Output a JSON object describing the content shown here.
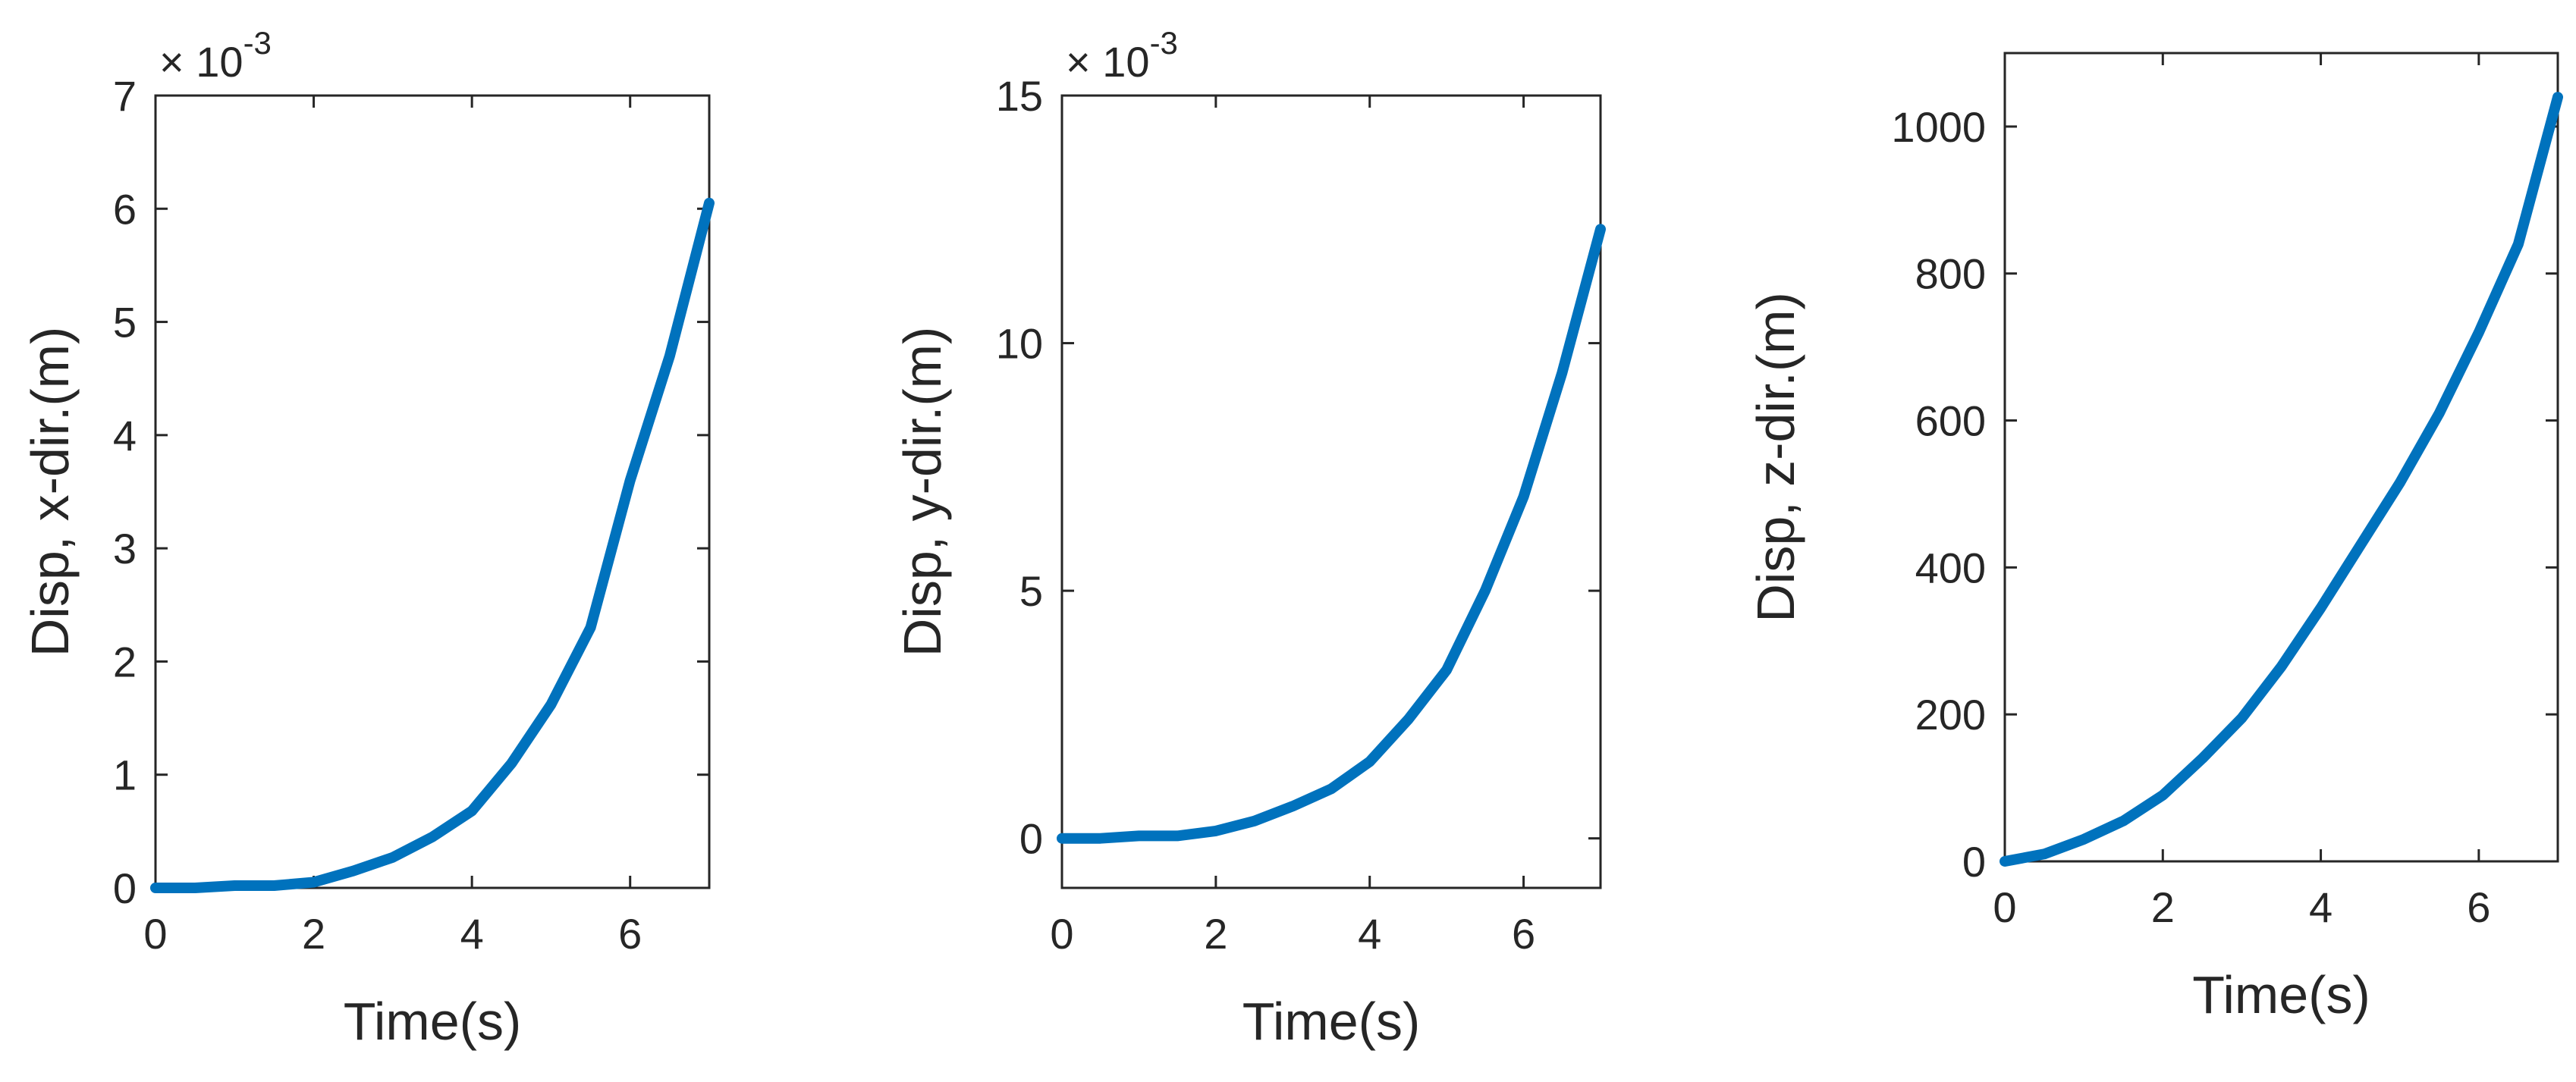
{
  "chart_data": [
    {
      "type": "line",
      "xlabel": "Time(s)",
      "ylabel": "Disp, x-dir.(m)",
      "exponent_label": "× 10",
      "exponent_power": "-3",
      "xlim": [
        0,
        7
      ],
      "ylim": [
        0,
        7
      ],
      "xticks": [
        0,
        2,
        4,
        6
      ],
      "yticks": [
        0,
        1,
        2,
        3,
        4,
        5,
        6,
        7
      ],
      "xtick_labels": [
        "0",
        "2",
        "4",
        "6"
      ],
      "ytick_labels": [
        "0",
        "1",
        "2",
        "3",
        "4",
        "5",
        "6",
        "7"
      ],
      "line_color": "#0072BD",
      "series": [
        {
          "x": [
            0,
            0.5,
            1.0,
            1.5,
            2.0,
            2.5,
            3.0,
            3.5,
            4.0,
            4.5,
            5.0,
            5.5,
            6.0,
            6.5,
            7.0
          ],
          "y": [
            0,
            0,
            0.02,
            0.02,
            0.05,
            0.15,
            0.27,
            0.45,
            0.68,
            1.1,
            1.62,
            2.3,
            3.6,
            4.7,
            6.05
          ]
        }
      ]
    },
    {
      "type": "line",
      "xlabel": "Time(s)",
      "ylabel": "Disp, y-dir.(m)",
      "exponent_label": "× 10",
      "exponent_power": "-3",
      "xlim": [
        0,
        7
      ],
      "ylim": [
        -1,
        15
      ],
      "xticks": [
        0,
        2,
        4,
        6
      ],
      "yticks": [
        0,
        5,
        10,
        15
      ],
      "xtick_labels": [
        "0",
        "2",
        "4",
        "6"
      ],
      "ytick_labels": [
        "0",
        "5",
        "10",
        "15"
      ],
      "line_color": "#0072BD",
      "series": [
        {
          "x": [
            0,
            0.5,
            1.0,
            1.5,
            2.0,
            2.5,
            3.0,
            3.5,
            4.0,
            4.5,
            5.0,
            5.5,
            6.0,
            6.5,
            7.0
          ],
          "y": [
            0,
            0,
            0.05,
            0.05,
            0.15,
            0.35,
            0.65,
            1.0,
            1.55,
            2.4,
            3.4,
            5.0,
            6.9,
            9.4,
            12.3
          ]
        }
      ]
    },
    {
      "type": "line",
      "xlabel": "Time(s)",
      "ylabel": "Disp, z-dir.(m)",
      "xlim": [
        0,
        7
      ],
      "ylim": [
        0,
        1100
      ],
      "xticks": [
        0,
        2,
        4,
        6
      ],
      "yticks": [
        0,
        200,
        400,
        600,
        800,
        1000
      ],
      "xtick_labels": [
        "0",
        "2",
        "4",
        "6"
      ],
      "ytick_labels": [
        "0",
        "200",
        "400",
        "600",
        "800",
        "1000"
      ],
      "line_color": "#0072BD",
      "series": [
        {
          "x": [
            0,
            0.5,
            1.0,
            1.5,
            2.0,
            2.5,
            3.0,
            3.5,
            4.0,
            4.5,
            5.0,
            5.5,
            6.0,
            6.5,
            7.0
          ],
          "y": [
            0,
            10,
            30,
            55,
            90,
            140,
            195,
            265,
            345,
            430,
            515,
            610,
            720,
            840,
            1040
          ]
        }
      ]
    }
  ]
}
